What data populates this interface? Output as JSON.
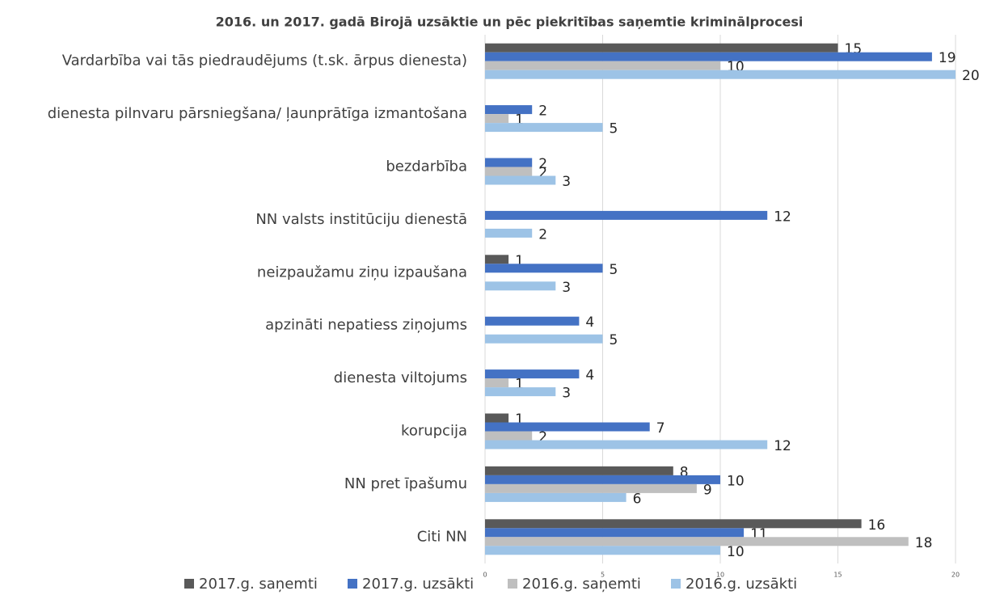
{
  "chart_data": {
    "type": "bar",
    "orientation": "horizontal",
    "title": "2016. un 2017. gadā Birojā uzsāktie un pēc piekritības saņemtie kriminālprocesi",
    "categories": [
      "Vardarbība vai tās piedraudējums (t.sk. ārpus dienesta)",
      "dienesta pilnvaru pārsniegšana/ ļaunprātīga izmantošana",
      "bezdarbība",
      "NN valsts institūciju dienestā",
      "neizpaužamu ziņu izpaušana",
      "apzināti nepatiess ziņojums",
      "dienesta viltojums",
      "korupcija",
      "NN pret īpašumu",
      "Citi NN"
    ],
    "series": [
      {
        "name": "2017.g. saņemti",
        "color": "#595959",
        "values": [
          15,
          null,
          null,
          null,
          1,
          null,
          null,
          1,
          8,
          16
        ]
      },
      {
        "name": "2017.g. uzsākti",
        "color": "#4472c4",
        "values": [
          19,
          2,
          2,
          12,
          5,
          4,
          4,
          7,
          10,
          11
        ]
      },
      {
        "name": "2016.g. saņemti",
        "color": "#bfbfbf",
        "values": [
          10,
          1,
          2,
          null,
          null,
          null,
          1,
          2,
          9,
          18
        ]
      },
      {
        "name": "2016.g. uzsākti",
        "color": "#9dc3e6",
        "values": [
          20,
          5,
          3,
          2,
          3,
          5,
          3,
          12,
          6,
          10
        ]
      }
    ],
    "xlim": [
      0,
      20
    ],
    "xticks": [
      0,
      5,
      10,
      15,
      20
    ],
    "grid": true,
    "legend": "bottom"
  }
}
